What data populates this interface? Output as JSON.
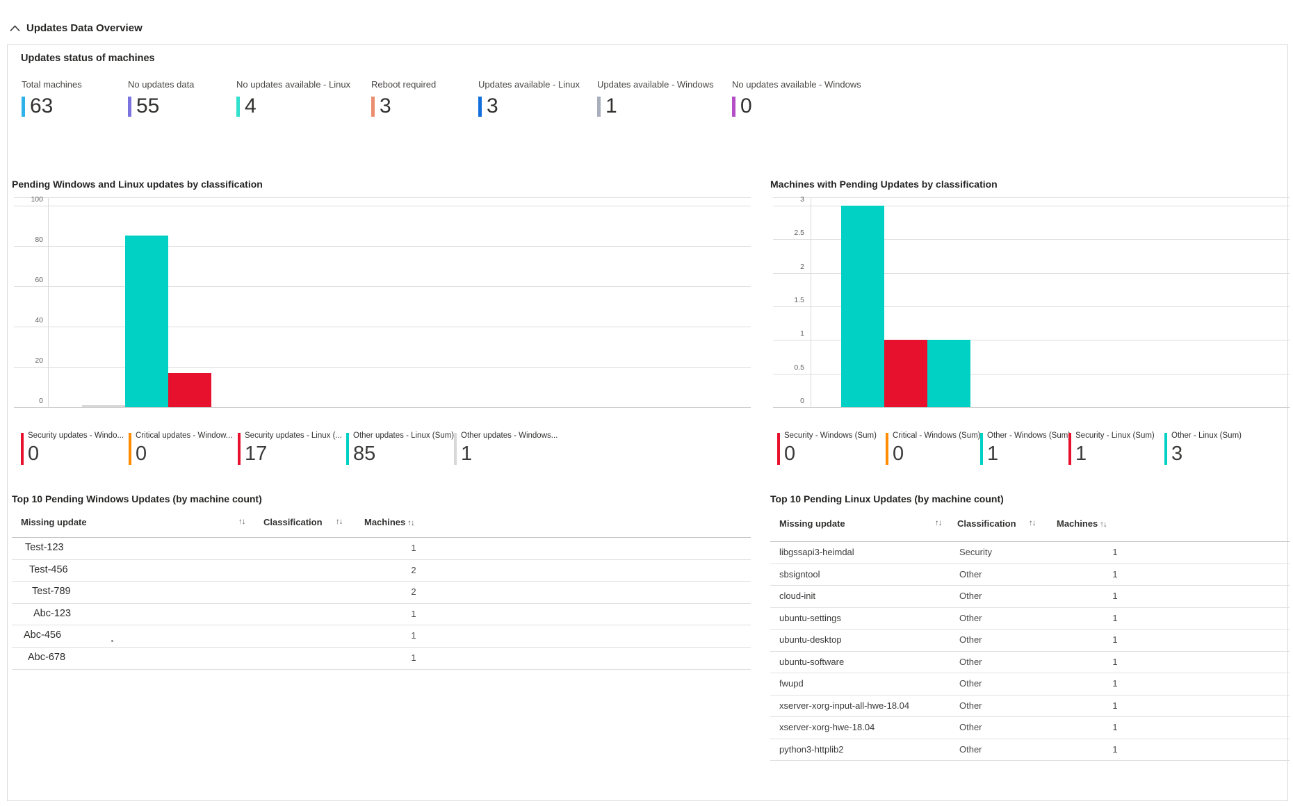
{
  "header": {
    "title": "Updates Data Overview"
  },
  "status": {
    "title": "Updates status of machines",
    "tiles": [
      {
        "label": "Total machines",
        "value": "63",
        "color": "#2fb2e9"
      },
      {
        "label": "No updates data",
        "value": "55",
        "color": "#7b74e0"
      },
      {
        "label": "No updates available - Linux",
        "value": "4",
        "color": "#32e0cd"
      },
      {
        "label": "Reboot required",
        "value": "3",
        "color": "#ea8e6f"
      },
      {
        "label": "Updates available - Linux",
        "value": "3",
        "color": "#1270dc"
      },
      {
        "label": "Updates available - Windows",
        "value": "1",
        "color": "#a9aebc"
      },
      {
        "label": "No updates available - Windows",
        "value": "0",
        "color": "#b44ec6"
      }
    ]
  },
  "chart_data": [
    {
      "type": "bar",
      "title": "Pending Windows and Linux updates by classification",
      "xlabel": "",
      "ylabel": "",
      "ylim": [
        0,
        100
      ],
      "yticks": [
        "100",
        "80",
        "60",
        "40",
        "20",
        "0"
      ],
      "grid": true,
      "legend_position": "bottom",
      "bars": [
        {
          "value": 1,
          "color": "#d8d8d8"
        },
        {
          "value": 85,
          "color": "#00d1c4"
        },
        {
          "value": 17,
          "color": "#e8112d"
        }
      ],
      "legend": [
        {
          "label": "Security updates - Windo...",
          "value": "0",
          "color": "#e8112d"
        },
        {
          "label": "Critical updates - Window...",
          "value": "0",
          "color": "#ff8c00"
        },
        {
          "label": "Security updates - Linux (...",
          "value": "17",
          "color": "#e8112d"
        },
        {
          "label": "Other updates - Linux (Sum)",
          "value": "85",
          "color": "#00d1c4"
        },
        {
          "label": "Other updates - Windows...",
          "value": "1",
          "color": "#d8d8d8"
        }
      ]
    },
    {
      "type": "bar",
      "title": "Machines with Pending Updates by classification",
      "xlabel": "",
      "ylabel": "",
      "ylim": [
        0,
        3
      ],
      "yticks": [
        "3",
        "2.5",
        "2",
        "1.5",
        "1",
        "0.5",
        "0"
      ],
      "grid": true,
      "legend_position": "bottom",
      "bars": [
        {
          "value": 3,
          "color": "#00d1c4"
        },
        {
          "value": 1,
          "color": "#e8112d"
        },
        {
          "value": 1,
          "color": "#00d1c4"
        }
      ],
      "legend": [
        {
          "label": "Security - Windows (Sum)",
          "value": "0",
          "color": "#e8112d"
        },
        {
          "label": "Critical - Windows (Sum)",
          "value": "0",
          "color": "#ff8c00"
        },
        {
          "label": "Other - Windows (Sum)",
          "value": "1",
          "color": "#00d1c4"
        },
        {
          "label": "Security - Linux (Sum)",
          "value": "1",
          "color": "#e8112d"
        },
        {
          "label": "Other - Linux (Sum)",
          "value": "3",
          "color": "#00d1c4"
        }
      ]
    }
  ],
  "tables": [
    {
      "title": "Top 10 Pending Windows Updates (by machine count)",
      "columns": [
        "Missing update",
        "Classification",
        "Machines"
      ],
      "sort_icon": "↑↓",
      "rows": [
        {
          "missing_update": "Test-123",
          "classification": "",
          "machines": "1"
        },
        {
          "missing_update": "Test-456",
          "classification": "",
          "machines": "2"
        },
        {
          "missing_update": "Test-789",
          "classification": "",
          "machines": "2"
        },
        {
          "missing_update": "Abc-123",
          "classification": "",
          "machines": "1"
        },
        {
          "missing_update": "Abc-456",
          "classification": "",
          "machines": "1"
        },
        {
          "missing_update": "Abc-678",
          "classification": "",
          "machines": "1"
        }
      ]
    },
    {
      "title": "Top 10 Pending Linux Updates (by machine count)",
      "columns": [
        "Missing update",
        "Classification",
        "Machines"
      ],
      "sort_icon": "↑↓",
      "rows": [
        {
          "missing_update": "libgssapi3-heimdal",
          "classification": "Security",
          "machines": "1"
        },
        {
          "missing_update": "sbsigntool",
          "classification": "Other",
          "machines": "1"
        },
        {
          "missing_update": "cloud-init",
          "classification": "Other",
          "machines": "1"
        },
        {
          "missing_update": "ubuntu-settings",
          "classification": "Other",
          "machines": "1"
        },
        {
          "missing_update": "ubuntu-desktop",
          "classification": "Other",
          "machines": "1"
        },
        {
          "missing_update": "ubuntu-software",
          "classification": "Other",
          "machines": "1"
        },
        {
          "missing_update": "fwupd",
          "classification": "Other",
          "machines": "1"
        },
        {
          "missing_update": "xserver-xorg-input-all-hwe-18.04",
          "classification": "Other",
          "machines": "1"
        },
        {
          "missing_update": "xserver-xorg-hwe-18.04",
          "classification": "Other",
          "machines": "1"
        },
        {
          "missing_update": "python3-httplib2",
          "classification": "Other",
          "machines": "1"
        }
      ]
    }
  ]
}
